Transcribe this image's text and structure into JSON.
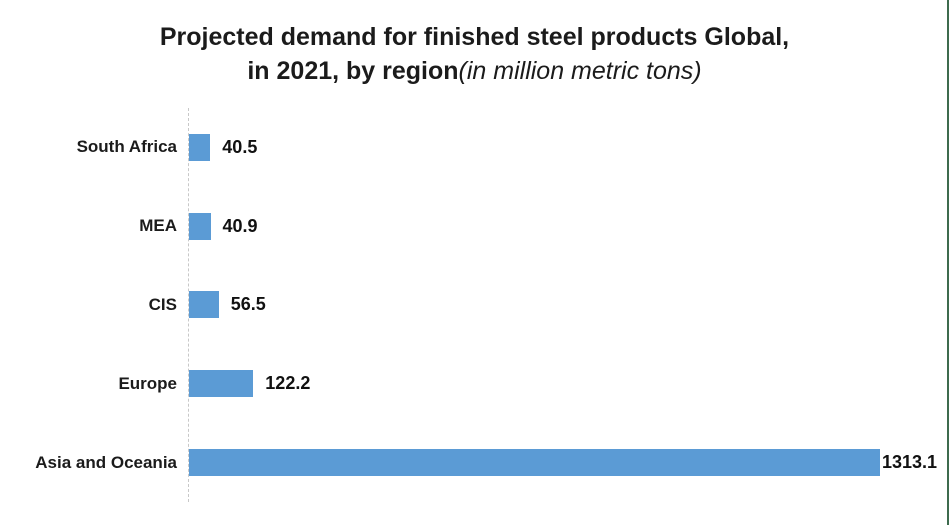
{
  "title": {
    "line1": "Projected demand for finished steel products Global,",
    "line2_bold": "in 2021, by region",
    "line2_italic": "(in million metric tons)"
  },
  "chart_data": {
    "type": "bar",
    "orientation": "horizontal",
    "title": "Projected demand for finished steel products Global, in 2021, by region (in million metric tons)",
    "categories": [
      "South Africa",
      "MEA",
      "CIS",
      "Europe",
      "Asia and Oceania"
    ],
    "values": [
      40.5,
      40.9,
      56.5,
      122.2,
      1313.1
    ],
    "value_labels": [
      "40.5",
      "40.9",
      "56.5",
      "122.2",
      "1313.1"
    ],
    "xlabel": "",
    "ylabel": "",
    "xlim": [
      0,
      1313.1
    ],
    "grid": "off",
    "legend": "none",
    "bar_color": "#5b9bd5",
    "axis_line_color": "#c8c8c8",
    "accent_edge_color": "#3e6b4e",
    "text_color": "#1b1b1b"
  }
}
